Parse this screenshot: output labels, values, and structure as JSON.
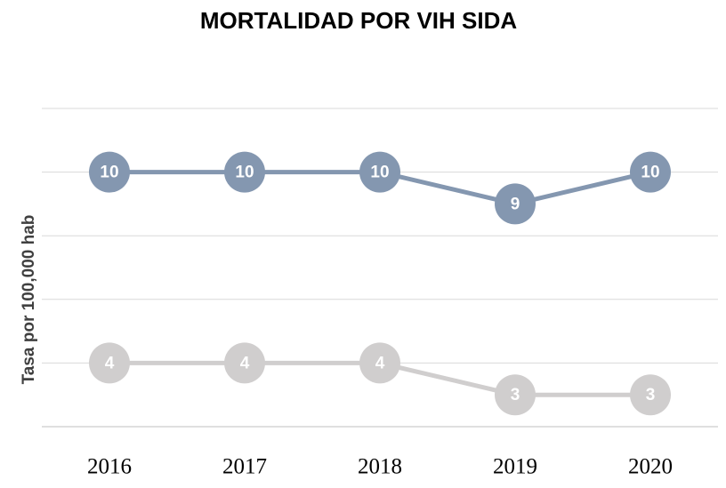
{
  "chart_data": {
    "type": "line",
    "title": "MORTALIDAD  POR VIH SIDA",
    "y_label": "Tasa por 100,000 hab",
    "categories": [
      "2016",
      "2017",
      "2018",
      "2019",
      "2020"
    ],
    "series": [
      {
        "color": "#8497b0",
        "values": [
          10,
          10,
          10,
          9,
          10
        ]
      },
      {
        "color": "#d0cece",
        "values": [
          4,
          4,
          4,
          3,
          3
        ]
      }
    ],
    "ylim": [
      2,
      12
    ],
    "yticks": [
      2,
      4,
      6,
      8,
      10,
      12
    ],
    "grid": true
  }
}
